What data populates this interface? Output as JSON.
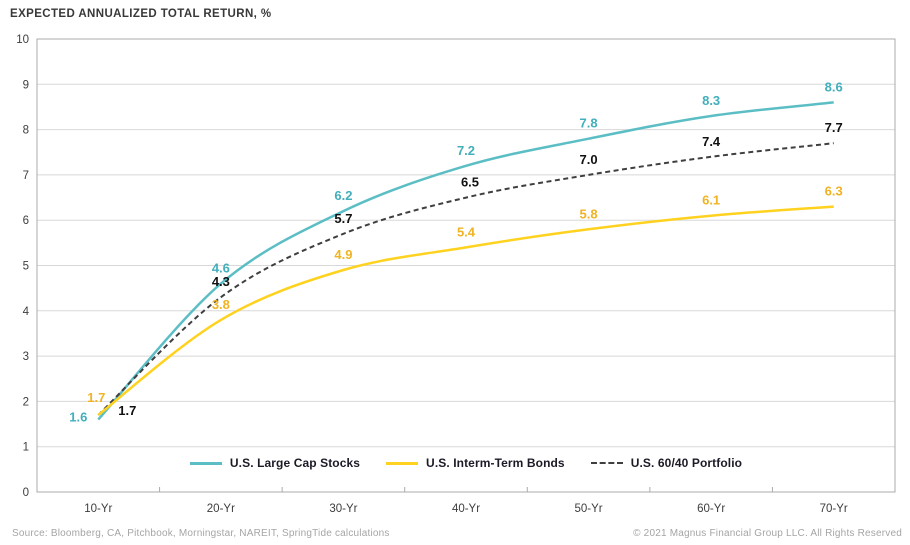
{
  "title": "EXPECTED ANNUALIZED TOTAL RETURN, %",
  "chart_data": {
    "type": "line",
    "categories": [
      "10-Yr",
      "20-Yr",
      "30-Yr",
      "40-Yr",
      "50-Yr",
      "60-Yr",
      "70-Yr"
    ],
    "series": [
      {
        "name": "U.S. Large Cap Stocks",
        "style": "solid",
        "line_color": "#5BBEC5",
        "label_color": "#41AFBC",
        "values": [
          1.6,
          4.6,
          6.2,
          7.2,
          7.8,
          8.3,
          8.6
        ]
      },
      {
        "name": "U.S. Interm-Term Bonds",
        "style": "solid",
        "line_color": "#FFD21F",
        "label_color": "#F0B323",
        "values": [
          1.7,
          3.8,
          4.9,
          5.4,
          5.8,
          6.1,
          6.3
        ]
      },
      {
        "name": "U.S. 60/40 Portfolio",
        "style": "dashed",
        "line_color": "#3F3F3F",
        "label_color": "#111111",
        "values": [
          1.7,
          4.3,
          5.7,
          6.5,
          7.0,
          7.4,
          7.7
        ]
      }
    ],
    "xlabel": "",
    "ylabel": "",
    "ylim": [
      0,
      10
    ],
    "yticks": [
      0,
      1,
      2,
      3,
      4,
      5,
      6,
      7,
      8,
      9,
      10
    ],
    "grid": true,
    "legend_position": "bottom-inside",
    "colors": {
      "grid": "#D8D8D8",
      "border": "#ABABAB",
      "axis_text": "#3D3D3D"
    }
  },
  "footer": {
    "source": "Source: Bloomberg, CA, Pitchbook, Morningstar, NAREIT, SpringTide calculations",
    "copyright": "© 2021 Magnus Financial Group LLC. All Rights Reserved"
  }
}
